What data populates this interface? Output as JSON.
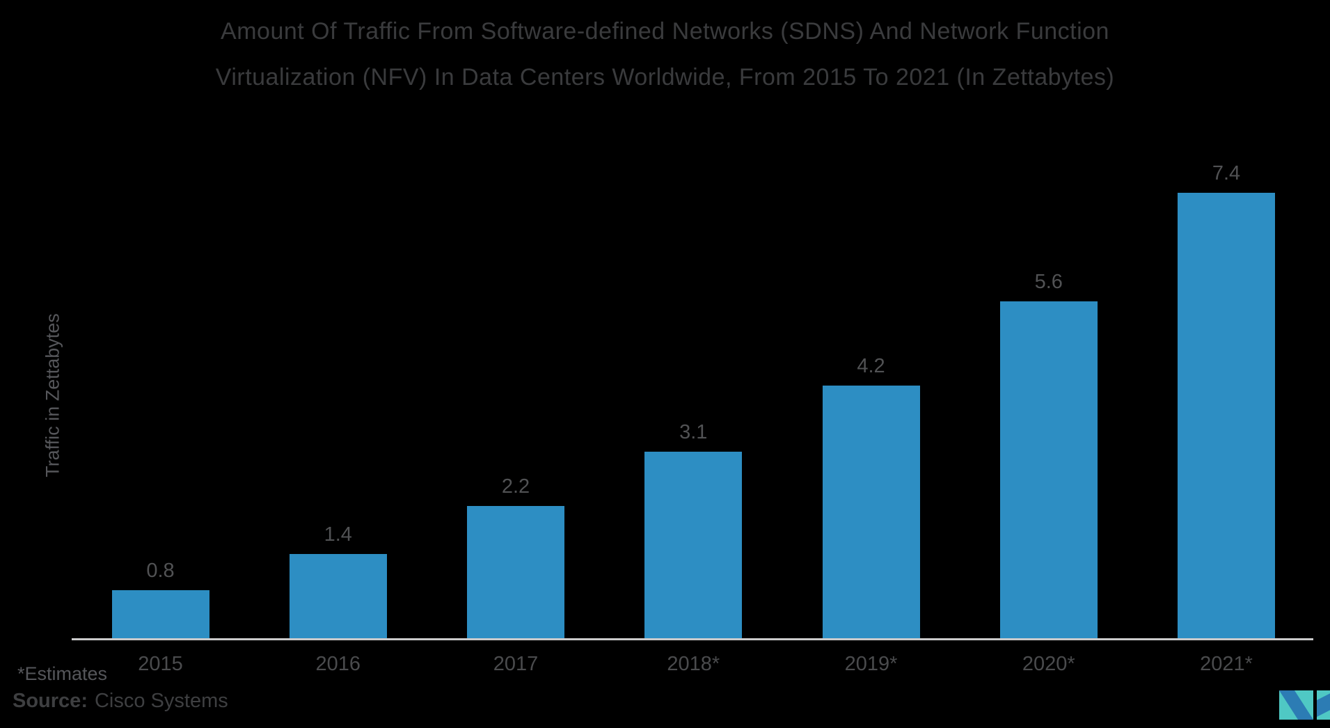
{
  "page": {
    "background": "#000000"
  },
  "title": {
    "line1": "Amount Of Traffic From Software-defined Networks (SDNS) And Network Function",
    "line2": "Virtualization (NFV) In Data Centers Worldwide, From 2015 To 2021 (In Zettabytes)",
    "color": "#3A3B3D"
  },
  "chart_data": {
    "type": "bar",
    "categories": [
      "2015",
      "2016",
      "2017",
      "2018*",
      "2019*",
      "2020*",
      "2021*"
    ],
    "values": [
      0.8,
      1.4,
      2.2,
      3.1,
      4.2,
      5.6,
      7.4
    ],
    "title": "Amount Of Traffic From Software-defined Networks (SDNS) And Network Function Virtualization (NFV) In Data Centers Worldwide, From 2015 To 2021 (In Zettabytes)",
    "xlabel": "",
    "ylabel": "Traffic in Zettabytes",
    "ylim": [
      0,
      8.8
    ],
    "grid": false,
    "legend": "none",
    "value_labels": true,
    "bar_color": "#2D8EC3",
    "value_label_color": "#515254",
    "tick_label_color": "#4A4B4D",
    "axis_line_color": "#CBCBCC",
    "ylabel_color": "#56575B"
  },
  "footnotes": {
    "estimates": "*Estimates",
    "estimates_color": "#55565A",
    "source_label": "Source:",
    "source_value": "Cisco Systems",
    "source_color": "#3E3F41"
  },
  "logo": {
    "name": "Mordor Intelligence logo mark",
    "teal": "#4FC8C4",
    "blue": "#2C7CB4"
  }
}
